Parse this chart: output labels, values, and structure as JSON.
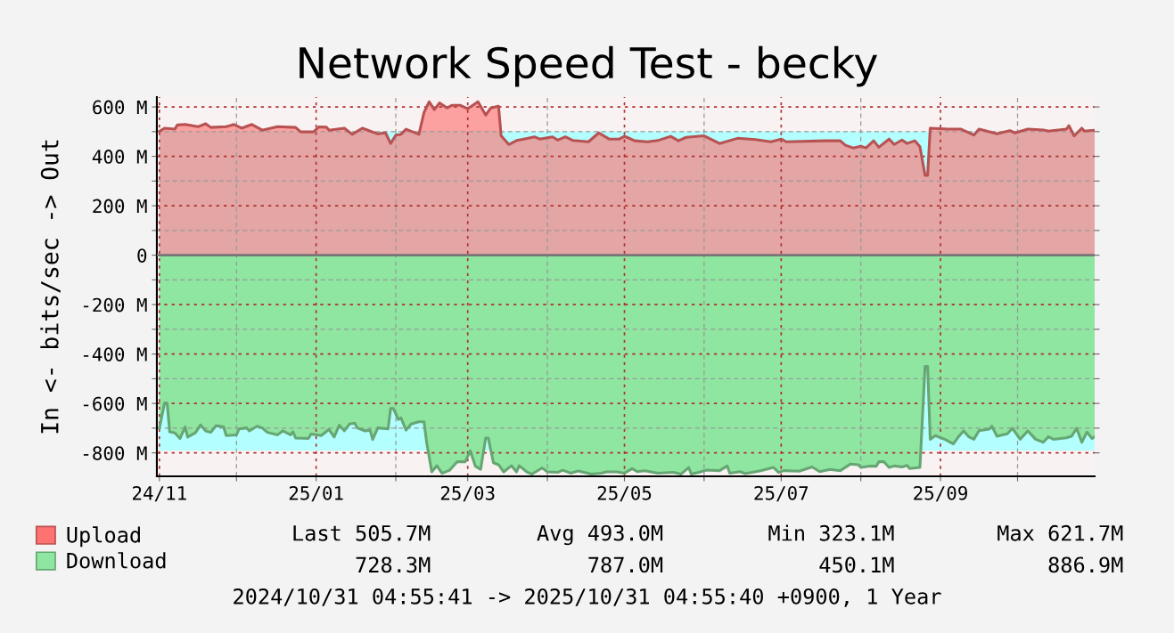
{
  "chart_data": {
    "type": "area",
    "title": "Network Speed Test - becky",
    "ylabel": "In <- bits/sec -> Out",
    "xlim": [
      "2024-10-31",
      "2025-10-31"
    ],
    "xticks": [
      {
        "value": "2024-11-01",
        "label": "24/11"
      },
      {
        "value": "2024-12-01",
        "label": null
      },
      {
        "value": "2025-01-01",
        "label": "25/01"
      },
      {
        "value": "2025-02-01",
        "label": null
      },
      {
        "value": "2025-03-01",
        "label": "25/03"
      },
      {
        "value": "2025-04-01",
        "label": null
      },
      {
        "value": "2025-05-01",
        "label": "25/05"
      },
      {
        "value": "2025-06-01",
        "label": null
      },
      {
        "value": "2025-07-01",
        "label": "25/07"
      },
      {
        "value": "2025-08-01",
        "label": null
      },
      {
        "value": "2025-09-01",
        "label": "25/09"
      },
      {
        "value": "2025-10-01",
        "label": null
      }
    ],
    "ylim": [
      -895,
      640
    ],
    "yticks": [
      {
        "value": -800,
        "label": "-800 M"
      },
      {
        "value": -700,
        "label": null
      },
      {
        "value": -600,
        "label": "-600 M"
      },
      {
        "value": -500,
        "label": null
      },
      {
        "value": -400,
        "label": "-400 M"
      },
      {
        "value": -300,
        "label": null
      },
      {
        "value": -200,
        "label": "-200 M"
      },
      {
        "value": -100,
        "label": null
      },
      0,
      {
        "value": 100,
        "label": null
      },
      {
        "value": 200,
        "label": "200 M"
      },
      {
        "value": 300,
        "label": null
      },
      {
        "value": 400,
        "label": "400 M"
      },
      {
        "value": 500,
        "label": null
      },
      {
        "value": 600,
        "label": "600 M"
      }
    ],
    "grid": true,
    "legend": "bottom",
    "ref_lines": [
      {
        "axis": "y",
        "value": 0,
        "color": "#777777"
      }
    ],
    "series": [
      {
        "color": "#b3ffff",
        "x": [
          "2024-11-01",
          "2025-10-31"
        ],
        "values": [
          500,
          500
        ]
      },
      {
        "color": "#b3ffff",
        "x": [
          "2024-11-01",
          "2025-10-31"
        ],
        "values": [
          -790,
          -790
        ]
      },
      {
        "name": "Upload",
        "color": "#ff7272",
        "x": [
          "2024-11-01",
          "2024-11-03",
          "2024-11-07",
          "2024-11-08",
          "2024-11-11",
          "2024-11-16",
          "2024-11-19",
          "2024-11-21",
          "2024-11-27",
          "2024-11-30",
          "2024-12-03",
          "2024-12-07",
          "2024-12-11",
          "2024-12-17",
          "2024-12-24",
          "2024-12-26",
          "2024-12-31",
          "2025-01-02",
          "2025-01-05",
          "2025-01-06",
          "2025-01-12",
          "2025-01-15",
          "2025-01-19",
          "2025-01-22",
          "2025-01-25",
          "2025-01-28",
          "2025-01-30",
          "2025-02-01",
          "2025-02-03",
          "2025-02-05",
          "2025-02-10",
          "2025-02-12",
          "2025-02-14",
          "2025-02-16",
          "2025-02-18",
          "2025-02-21",
          "2025-02-23",
          "2025-02-26",
          "2025-03-01",
          "2025-03-03",
          "2025-03-05",
          "2025-03-08",
          "2025-03-10",
          "2025-03-13",
          "2025-03-14",
          "2025-03-17",
          "2025-03-20",
          "2025-03-22",
          "2025-03-27",
          "2025-03-29",
          "2025-04-03",
          "2025-04-05",
          "2025-04-08",
          "2025-04-11",
          "2025-04-17",
          "2025-04-21",
          "2025-04-25",
          "2025-04-29",
          "2025-05-01",
          "2025-05-02",
          "2025-05-05",
          "2025-05-10",
          "2025-05-14",
          "2025-05-19",
          "2025-05-22",
          "2025-05-25",
          "2025-06-01",
          "2025-06-07",
          "2025-06-14",
          "2025-06-21",
          "2025-06-27",
          "2025-07-01",
          "2025-07-03",
          "2025-07-18",
          "2025-07-24",
          "2025-07-26",
          "2025-07-29",
          "2025-08-01",
          "2025-08-03",
          "2025-08-06",
          "2025-08-08",
          "2025-08-12",
          "2025-08-14",
          "2025-08-17",
          "2025-08-19",
          "2025-08-22",
          "2025-08-24",
          "2025-08-26",
          "2025-08-27",
          "2025-08-28",
          "2025-09-04",
          "2025-09-09",
          "2025-09-14",
          "2025-09-16",
          "2025-09-23",
          "2025-09-28",
          "2025-09-30",
          "2025-10-05",
          "2025-10-11",
          "2025-10-13",
          "2025-10-20",
          "2025-10-21",
          "2025-10-23",
          "2025-10-26",
          "2025-10-27",
          "2025-10-31"
        ],
        "values": [
          501,
          514,
          510,
          527,
          529,
          520,
          532,
          517,
          520,
          529,
          514,
          529,
          506,
          520,
          517,
          499,
          499,
          519,
          518,
          506,
          514,
          489,
          514,
          502,
          491,
          495,
          452,
          486,
          489,
          510,
          489,
          578,
          621,
          589,
          616,
          596,
          607,
          607,
          593,
          607,
          621,
          567,
          596,
          603,
          483,
          448,
          464,
          468,
          479,
          470,
          479,
          466,
          479,
          464,
          459,
          495,
          470,
          470,
          481,
          477,
          463,
          459,
          464,
          481,
          463,
          477,
          483,
          452,
          473,
          468,
          459,
          470,
          459,
          463,
          463,
          445,
          434,
          441,
          434,
          463,
          437,
          470,
          448,
          466,
          452,
          463,
          439,
          323,
          323,
          514,
          510,
          510,
          486,
          510,
          491,
          504,
          495,
          510,
          507,
          502,
          510,
          524,
          483,
          514,
          502,
          506
        ]
      },
      {
        "name": "Download",
        "color": "#8ee6a0",
        "x": [
          "2024-11-01",
          "2024-11-03",
          "2024-11-04",
          "2024-11-05",
          "2024-11-07",
          "2024-11-09",
          "2024-11-11",
          "2024-11-12",
          "2024-11-15",
          "2024-11-17",
          "2024-11-19",
          "2024-11-21",
          "2024-11-23",
          "2024-11-26",
          "2024-11-27",
          "2024-12-01",
          "2024-12-02",
          "2024-12-05",
          "2024-12-06",
          "2024-12-09",
          "2024-12-11",
          "2024-12-13",
          "2024-12-17",
          "2024-12-19",
          "2024-12-22",
          "2024-12-23",
          "2024-12-24",
          "2024-12-29",
          "2024-12-30",
          "2025-01-03",
          "2025-01-06",
          "2025-01-08",
          "2025-01-10",
          "2025-01-12",
          "2025-01-14",
          "2025-01-16",
          "2025-01-17",
          "2025-01-20",
          "2025-01-22",
          "2025-01-23",
          "2025-01-25",
          "2025-01-29",
          "2025-01-30",
          "2025-01-31",
          "2025-02-02",
          "2025-02-03",
          "2025-02-05",
          "2025-02-07",
          "2025-02-10",
          "2025-02-12",
          "2025-02-13",
          "2025-02-15",
          "2025-02-17",
          "2025-02-19",
          "2025-02-22",
          "2025-02-24",
          "2025-02-25",
          "2025-02-28",
          "2025-03-02",
          "2025-03-04",
          "2025-03-06",
          "2025-03-08",
          "2025-03-09",
          "2025-03-11",
          "2025-03-13",
          "2025-03-15",
          "2025-03-18",
          "2025-03-20",
          "2025-03-21",
          "2025-03-24",
          "2025-03-26",
          "2025-03-29",
          "2025-03-30",
          "2025-04-01",
          "2025-04-05",
          "2025-04-07",
          "2025-04-10",
          "2025-04-13",
          "2025-04-18",
          "2025-04-22",
          "2025-04-24",
          "2025-04-28",
          "2025-05-01",
          "2025-05-04",
          "2025-05-06",
          "2025-05-09",
          "2025-05-14",
          "2025-05-20",
          "2025-05-23",
          "2025-05-26",
          "2025-05-27",
          "2025-05-30",
          "2025-06-02",
          "2025-06-07",
          "2025-06-10",
          "2025-06-11",
          "2025-06-15",
          "2025-06-17",
          "2025-06-23",
          "2025-06-28",
          "2025-06-30",
          "2025-07-02",
          "2025-07-08",
          "2025-07-13",
          "2025-07-16",
          "2025-07-20",
          "2025-07-24",
          "2025-07-28",
          "2025-07-31",
          "2025-08-01",
          "2025-08-04",
          "2025-08-07",
          "2025-08-08",
          "2025-08-10",
          "2025-08-12",
          "2025-08-14",
          "2025-08-17",
          "2025-08-19",
          "2025-08-20",
          "2025-08-24",
          "2025-08-26",
          "2025-08-27",
          "2025-08-28",
          "2025-08-30",
          "2025-09-03",
          "2025-09-06",
          "2025-09-08",
          "2025-09-10",
          "2025-09-12",
          "2025-09-14",
          "2025-09-16",
          "2025-09-20",
          "2025-09-21",
          "2025-09-23",
          "2025-09-27",
          "2025-09-29",
          "2025-10-02",
          "2025-10-05",
          "2025-10-08",
          "2025-10-11",
          "2025-10-13",
          "2025-10-15",
          "2025-10-20",
          "2025-10-22",
          "2025-10-24",
          "2025-10-26",
          "2025-10-28",
          "2025-10-30",
          "2025-10-31"
        ],
        "values": [
          -699,
          -599,
          -599,
          -715,
          -719,
          -742,
          -695,
          -736,
          -719,
          -687,
          -711,
          -717,
          -690,
          -695,
          -730,
          -727,
          -703,
          -699,
          -711,
          -692,
          -699,
          -717,
          -727,
          -711,
          -727,
          -715,
          -740,
          -742,
          -724,
          -730,
          -705,
          -736,
          -688,
          -711,
          -683,
          -680,
          -699,
          -711,
          -708,
          -746,
          -699,
          -703,
          -620,
          -620,
          -665,
          -658,
          -708,
          -683,
          -674,
          -674,
          -757,
          -877,
          -852,
          -883,
          -870,
          -846,
          -836,
          -836,
          -792,
          -854,
          -867,
          -740,
          -740,
          -840,
          -848,
          -877,
          -852,
          -877,
          -852,
          -877,
          -886,
          -867,
          -861,
          -877,
          -879,
          -870,
          -882,
          -873,
          -886,
          -882,
          -877,
          -877,
          -882,
          -864,
          -876,
          -872,
          -882,
          -879,
          -886,
          -859,
          -886,
          -879,
          -870,
          -872,
          -853,
          -882,
          -876,
          -884,
          -872,
          -859,
          -879,
          -872,
          -874,
          -857,
          -876,
          -867,
          -872,
          -845,
          -848,
          -859,
          -854,
          -854,
          -836,
          -836,
          -859,
          -853,
          -857,
          -851,
          -863,
          -859,
          -450,
          -450,
          -745,
          -730,
          -747,
          -764,
          -735,
          -711,
          -735,
          -745,
          -710,
          -704,
          -692,
          -733,
          -723,
          -701,
          -745,
          -711,
          -745,
          -757,
          -735,
          -745,
          -739,
          -733,
          -701,
          -757,
          -716,
          -742,
          -735
        ]
      }
    ],
    "annotations": [
      "Last 505.7M",
      "Avg 493.0M",
      "Min 323.1M",
      "Max 621.7M",
      "728.3M",
      "787.0M",
      "450.1M",
      "886.9M",
      "2024/10/31 04:55:41 -> 2025/10/31 04:55:40 +0900, 1 Year"
    ]
  }
}
